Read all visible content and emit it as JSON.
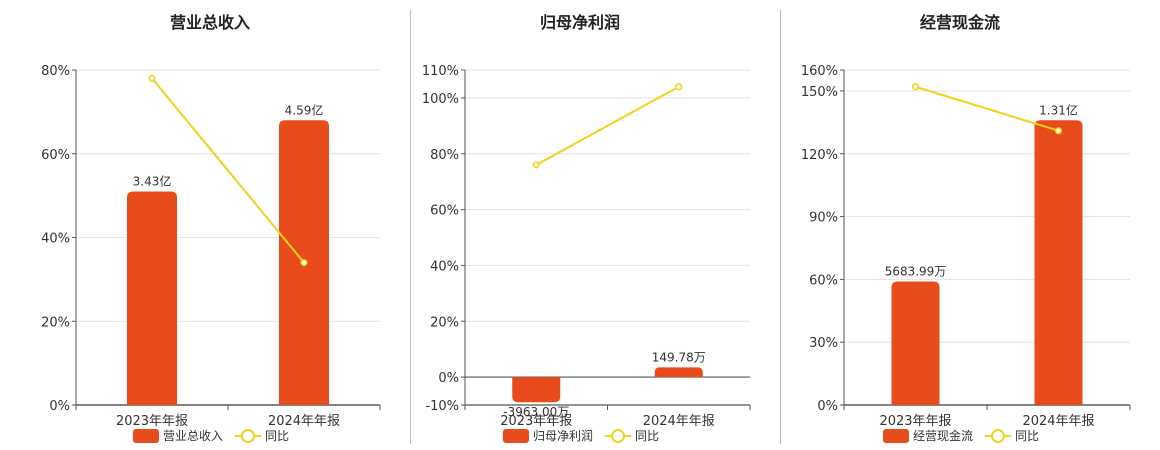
{
  "colors": {
    "bar": "#e84c1c",
    "line": "#f2d21a",
    "grid": "#e3e3e3",
    "axis": "#555555",
    "divider": "#bdbdbd"
  },
  "chart_data": [
    {
      "type": "bar",
      "title": "营业总收入",
      "categories": [
        "2023年年报",
        "2024年年报"
      ],
      "series": [
        {
          "name": "营业总收入",
          "type": "bar",
          "labels": [
            "3.43亿",
            "4.59亿"
          ],
          "values_pct_axis": [
            51,
            68
          ]
        },
        {
          "name": "同比",
          "type": "line",
          "values": [
            78,
            34
          ]
        }
      ],
      "yaxis": {
        "min": 0,
        "max": 80,
        "ticks": [
          0,
          20,
          40,
          60,
          80
        ],
        "tick_labels": [
          "0%",
          "20%",
          "40%",
          "60%",
          "80%"
        ]
      },
      "legend": [
        "营业总收入",
        "同比"
      ],
      "legend_position": "bottom"
    },
    {
      "type": "bar",
      "title": "归母净利润",
      "categories": [
        "2023年年报",
        "2024年年报"
      ],
      "series": [
        {
          "name": "归母净利润",
          "type": "bar",
          "labels": [
            "-3963.00万",
            "149.78万"
          ],
          "values_pct_axis": [
            -9,
            3.5
          ]
        },
        {
          "name": "同比",
          "type": "line",
          "values": [
            76,
            104
          ]
        }
      ],
      "yaxis": {
        "min": -10,
        "max": 110,
        "ticks": [
          -10,
          0,
          20,
          40,
          60,
          80,
          100,
          110
        ],
        "tick_labels": [
          "-10%",
          "0%",
          "20%",
          "40%",
          "60%",
          "80%",
          "100%",
          "110%"
        ]
      },
      "legend": [
        "归母净利润",
        "同比"
      ],
      "legend_position": "bottom"
    },
    {
      "type": "bar",
      "title": "经营现金流",
      "categories": [
        "2023年年报",
        "2024年年报"
      ],
      "series": [
        {
          "name": "经营现金流",
          "type": "bar",
          "labels": [
            "5683.99万",
            "1.31亿"
          ],
          "values_pct_axis": [
            59,
            136
          ]
        },
        {
          "name": "同比",
          "type": "line",
          "values": [
            152,
            131
          ]
        }
      ],
      "yaxis": {
        "min": 0,
        "max": 160,
        "ticks": [
          0,
          30,
          60,
          90,
          120,
          150,
          160
        ],
        "tick_labels": [
          "0%",
          "30%",
          "60%",
          "90%",
          "120%",
          "150%",
          "160%"
        ]
      },
      "legend": [
        "经营现金流",
        "同比"
      ],
      "legend_position": "bottom"
    }
  ]
}
